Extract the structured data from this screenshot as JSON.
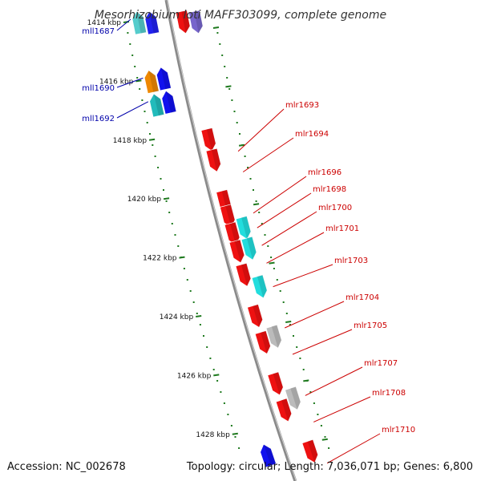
{
  "title": "Mesorhizobium loti MAFF303099, complete genome",
  "footer": {
    "accession": "Accession: NC_002678",
    "stats": "Topology: circular; Length: 7,036,071 bp; Genes: 6,800"
  },
  "axis": {
    "unit": "kbp",
    "ticks": [
      1414,
      1416,
      1418,
      1420,
      1422,
      1424,
      1426,
      1428
    ]
  },
  "colors": {
    "backbone": "#8a8a8a",
    "grid": "#1f7a1f",
    "left_label": "#0000aa",
    "right_label": "#cc0000"
  },
  "genes_left": [
    {
      "id": "mll1687",
      "pos": 1414.0,
      "track": 1,
      "color": "#55cccc"
    },
    {
      "id": "mll1687b",
      "pos": 1414.0,
      "track": 2,
      "color": "#2222ee"
    },
    {
      "id": "mll1690",
      "pos": 1416.0,
      "track": 1,
      "color": "#ee8800"
    },
    {
      "id": "mll1690b",
      "pos": 1415.9,
      "track": 2,
      "color": "#1111ee"
    },
    {
      "id": "mll1692",
      "pos": 1416.8,
      "track": 1,
      "color": "#22bbbb"
    },
    {
      "id": "mll1692b",
      "pos": 1416.7,
      "track": 2,
      "color": "#1111ee"
    },
    {
      "id": "mll_end1",
      "pos": 1428.7,
      "track": 2,
      "color": "#1111ee"
    }
  ],
  "genes_right": [
    {
      "id": "mlr_top1",
      "pos": 1414.0,
      "track": 1,
      "color": "#ee1111"
    },
    {
      "id": "mlr_top2",
      "pos": 1414.0,
      "track": 2,
      "color": "#7766cc"
    },
    {
      "id": "mlr1693",
      "pos": 1418.0,
      "track": 1,
      "color": "#ee1111"
    },
    {
      "id": "mlr1694",
      "pos": 1418.7,
      "track": 1,
      "color": "#ee1111"
    },
    {
      "id": "mlr1696",
      "pos": 1420.1,
      "track": 1,
      "color": "#ee1111"
    },
    {
      "id": "mlr1698",
      "pos": 1420.6,
      "track": 1,
      "color": "#ee1111"
    },
    {
      "id": "mlr1700",
      "pos": 1421.2,
      "track": 1,
      "color": "#ee1111"
    },
    {
      "id": "mlr1700c",
      "pos": 1421.0,
      "track": 2,
      "color": "#22dddd"
    },
    {
      "id": "mlr1701",
      "pos": 1421.8,
      "track": 1,
      "color": "#ee1111"
    },
    {
      "id": "mlr1701c",
      "pos": 1421.7,
      "track": 2,
      "color": "#22dddd"
    },
    {
      "id": "mlr1703",
      "pos": 1422.6,
      "track": 1,
      "color": "#ee1111"
    },
    {
      "id": "mlr1703c",
      "pos": 1423.0,
      "track": 2,
      "color": "#22dddd"
    },
    {
      "id": "mlr1704",
      "pos": 1424.0,
      "track": 1,
      "color": "#ee1111"
    },
    {
      "id": "mlr1705",
      "pos": 1424.9,
      "track": 1,
      "color": "#ee1111"
    },
    {
      "id": "mlr1705g",
      "pos": 1424.7,
      "track": 2,
      "color": "#bbbbbb"
    },
    {
      "id": "mlr1707",
      "pos": 1426.3,
      "track": 1,
      "color": "#ee1111"
    },
    {
      "id": "mlr1708",
      "pos": 1427.2,
      "track": 1,
      "color": "#ee1111"
    },
    {
      "id": "mlr1708g",
      "pos": 1426.8,
      "track": 2,
      "color": "#bbbbbb"
    },
    {
      "id": "mlr1710",
      "pos": 1428.6,
      "track": 2,
      "color": "#ee1111"
    }
  ],
  "labels_left": [
    "mll1687",
    "mll1690",
    "mll1692"
  ],
  "labels_right": [
    "mlr1693",
    "mlr1694",
    "mlr1696",
    "mlr1698",
    "mlr1700",
    "mlr1701",
    "mlr1703",
    "mlr1704",
    "mlr1705",
    "mlr1707",
    "mlr1708",
    "mlr1710"
  ]
}
